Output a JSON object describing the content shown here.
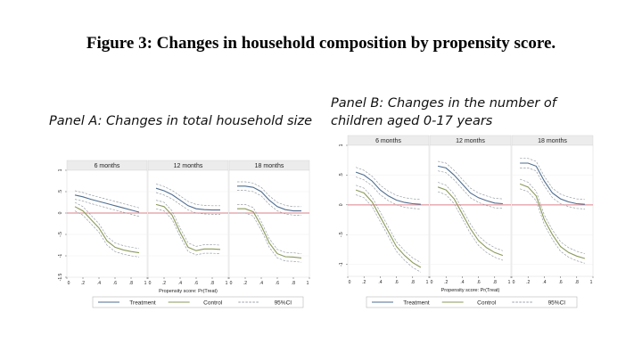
{
  "title": "Figure 3: Changes in household composition by propensity score.",
  "panels": {
    "a": {
      "title": "Panel A: Changes in total household size"
    },
    "b": {
      "title": "Panel B: Changes in the number of children aged 0-17 years"
    }
  },
  "colors": {
    "treatment": "#4f6d8f",
    "control": "#8a9a5b",
    "ci": "#9aa0a6",
    "zero_line": "#d9808a"
  },
  "chart_data": [
    {
      "type": "line",
      "title": "Panel A: Changes in total household size",
      "subplots": [
        "6 months",
        "12 months",
        "18 months"
      ],
      "xlabel": "Propensity score: Pr(Treat)",
      "x_ticks": [
        "0",
        ".2",
        ".4",
        ".6",
        ".8",
        "1"
      ],
      "y_ticks": [
        "1",
        ".5",
        "0",
        "-.5",
        "-1",
        "-1.5"
      ],
      "xlim": [
        0,
        1
      ],
      "ylim": [
        -1.5,
        1
      ],
      "x": [
        0.1,
        0.2,
        0.3,
        0.4,
        0.5,
        0.6,
        0.7,
        0.8,
        0.9
      ],
      "reference_line": 0,
      "legend": [
        "Treatment",
        "Control",
        "95%CI"
      ],
      "legend_position": "bottom",
      "series": {
        "6 months": {
          "treatment": [
            0.42,
            0.38,
            0.32,
            0.27,
            0.22,
            0.17,
            0.12,
            0.07,
            0.02
          ],
          "control": [
            0.15,
            0.05,
            -0.15,
            -0.35,
            -0.65,
            -0.8,
            -0.86,
            -0.9,
            -0.93
          ],
          "ci_halfwidth": 0.1
        },
        "12 months": {
          "treatment": [
            0.58,
            0.52,
            0.43,
            0.3,
            0.17,
            0.1,
            0.08,
            0.07,
            0.07
          ],
          "control": [
            0.2,
            0.15,
            -0.05,
            -0.45,
            -0.8,
            -0.88,
            -0.84,
            -0.84,
            -0.85
          ],
          "ci_halfwidth": 0.1
        },
        "18 months": {
          "treatment": [
            0.63,
            0.63,
            0.6,
            0.5,
            0.3,
            0.15,
            0.08,
            0.05,
            0.05
          ],
          "control": [
            0.1,
            0.1,
            0.03,
            -0.3,
            -0.7,
            -0.95,
            -1.02,
            -1.03,
            -1.05
          ],
          "ci_halfwidth": 0.1
        }
      }
    },
    {
      "type": "line",
      "title": "Panel B: Changes in the number of children aged 0-17 years",
      "subplots": [
        "6 months",
        "12 months",
        "18 months"
      ],
      "xlabel": "Propensity score: Pr(Treat)",
      "x_ticks": [
        "0",
        ".2",
        ".4",
        ".6",
        ".8",
        "1"
      ],
      "y_ticks": [
        "1",
        ".5",
        "0",
        "-.5",
        "-1"
      ],
      "xlim": [
        0,
        1
      ],
      "ylim": [
        -1.2,
        1
      ],
      "x": [
        0.1,
        0.2,
        0.3,
        0.4,
        0.5,
        0.6,
        0.7,
        0.8,
        0.9
      ],
      "reference_line": 0,
      "legend": [
        "Treatment",
        "Control",
        "95%CI"
      ],
      "legend_position": "bottom",
      "series": {
        "6 months": {
          "treatment": [
            0.55,
            0.5,
            0.4,
            0.25,
            0.15,
            0.08,
            0.04,
            0.02,
            0.01
          ],
          "control": [
            0.25,
            0.2,
            0.05,
            -0.2,
            -0.45,
            -0.7,
            -0.85,
            -0.97,
            -1.05
          ],
          "ci_halfwidth": 0.08
        },
        "12 months": {
          "treatment": [
            0.65,
            0.62,
            0.5,
            0.35,
            0.2,
            0.12,
            0.07,
            0.03,
            0.02
          ],
          "control": [
            0.3,
            0.25,
            0.1,
            -0.15,
            -0.4,
            -0.6,
            -0.72,
            -0.8,
            -0.85
          ],
          "ci_halfwidth": 0.08
        },
        "18 months": {
          "treatment": [
            0.7,
            0.7,
            0.65,
            0.4,
            0.2,
            0.1,
            0.05,
            0.02,
            0.01
          ],
          "control": [
            0.35,
            0.3,
            0.15,
            -0.25,
            -0.5,
            -0.7,
            -0.8,
            -0.86,
            -0.9
          ],
          "ci_halfwidth": 0.08
        }
      }
    }
  ]
}
